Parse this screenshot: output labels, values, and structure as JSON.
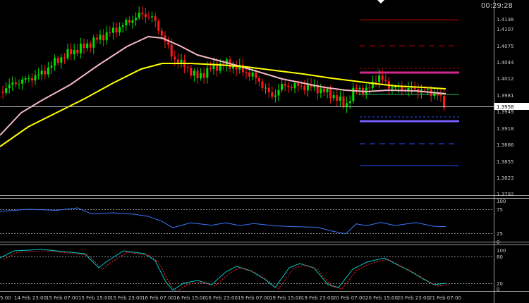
{
  "terminal": {
    "clock": "00:29:28",
    "current_price": "1.3958",
    "colors": {
      "background": "#000000",
      "bull_candle": "#00e000",
      "bear_candle": "#ff1a1a",
      "ma_slow": "#ffff00",
      "ma_fast": "#f4b8c4",
      "pivot_line": "#cc2a8c",
      "support_line": "#7b5cff",
      "indicator_line": "#3a78ff",
      "signal_line": "#ff2a2a",
      "osc_line": "#00c8c8",
      "level_resistance": "#b40000",
      "level_support": "#2a4cff"
    },
    "price_axis": [
      "1.4138",
      "1.4107",
      "1.4075",
      "1.4044",
      "1.4012",
      "1.3981",
      "1.3949",
      "1.3918",
      "1.3886",
      "1.3855",
      "1.3823",
      "1.3792"
    ],
    "time_axis": [
      "5:00",
      "14 Feb 23:00",
      "15 Feb 07:00",
      "15 Feb 15:00",
      "15 Feb 23:00",
      "16 Feb 07:00",
      "16 Feb 15:00",
      "16 Feb 23:00",
      "19 Feb 07:00",
      "19 Feb 15:00",
      "19 Feb 23:00",
      "20 Feb 07:00",
      "20 Feb 15:00",
      "20 Feb 23:00",
      "21 Feb 07:00"
    ],
    "rsi_panel": {
      "levels": [
        "100",
        "75",
        "25",
        "0"
      ]
    },
    "stoch_panel": {
      "levels": [
        "100",
        "80",
        "20",
        "0"
      ]
    },
    "icons": {
      "top_marker": "triangle-down-icon"
    }
  }
}
